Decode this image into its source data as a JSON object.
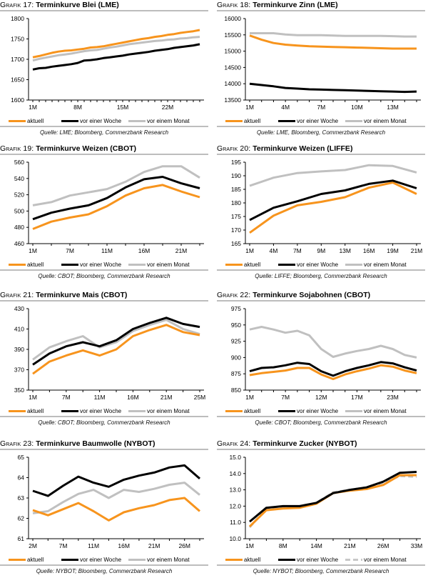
{
  "colors": {
    "aktuell": "#f7941d",
    "woche": "#000000",
    "monat": "#c0c0c0",
    "rule": "#bdbdbd"
  },
  "legend_labels": [
    "aktuell",
    "vor einer Woche",
    "vor einem Monat"
  ],
  "chart_data": [
    {
      "id": "g17",
      "type": "line",
      "prefix": "Grafik 17:",
      "title": "Terminkurve Blei (LME)",
      "source": "Quelle: LME; Bloomberg, Commerzbank Research",
      "ylim": [
        1600,
        1800
      ],
      "yticks": [
        1600,
        1650,
        1700,
        1750,
        1800
      ],
      "xticks": [
        "1M",
        "8M",
        "15M",
        "22M"
      ],
      "xtick_idx": [
        0,
        7,
        14,
        21
      ],
      "n": 27,
      "series": [
        {
          "name": "aktuell",
          "values": [
            1705,
            1708,
            1712,
            1716,
            1719,
            1721,
            1722,
            1724,
            1726,
            1729,
            1730,
            1732,
            1735,
            1738,
            1741,
            1744,
            1747,
            1750,
            1752,
            1755,
            1757,
            1760,
            1762,
            1765,
            1767,
            1769,
            1772
          ]
        },
        {
          "name": "vor einer Woche",
          "values": [
            1675,
            1678,
            1679,
            1682,
            1684,
            1686,
            1688,
            1691,
            1697,
            1698,
            1700,
            1703,
            1705,
            1707,
            1709,
            1712,
            1714,
            1716,
            1718,
            1721,
            1723,
            1725,
            1728,
            1730,
            1732,
            1734,
            1737
          ]
        },
        {
          "name": "vor einem Monat",
          "values": [
            1697,
            1701,
            1704,
            1707,
            1710,
            1712,
            1714,
            1717,
            1720,
            1722,
            1723,
            1726,
            1729,
            1731,
            1734,
            1737,
            1739,
            1741,
            1743,
            1745,
            1746,
            1748,
            1749,
            1751,
            1752,
            1754,
            1755
          ]
        }
      ]
    },
    {
      "id": "g18",
      "type": "line",
      "prefix": "Grafik 18:",
      "title": "Terminkurve Zinn (LME)",
      "source": "Quelle: LME, Bloomberg, Commerzbank Research",
      "ylim": [
        13500,
        16000
      ],
      "yticks": [
        13500,
        14000,
        14500,
        15000,
        15500,
        16000
      ],
      "xticks": [
        "1M",
        "4M",
        "7M",
        "10M",
        "13M"
      ],
      "xtick_idx": [
        0,
        3,
        6,
        9,
        12
      ],
      "n": 15,
      "series": [
        {
          "name": "aktuell",
          "values": [
            15480,
            15350,
            15250,
            15200,
            15170,
            15150,
            15140,
            15130,
            15120,
            15110,
            15100,
            15090,
            15080,
            15080,
            15080
          ]
        },
        {
          "name": "vor einer Woche",
          "values": [
            14000,
            13960,
            13920,
            13870,
            13850,
            13830,
            13820,
            13810,
            13800,
            13790,
            13780,
            13770,
            13760,
            13750,
            13760
          ]
        },
        {
          "name": "vor einem Monat",
          "values": [
            15550,
            15550,
            15550,
            15510,
            15490,
            15490,
            15490,
            15480,
            15470,
            15470,
            15470,
            15470,
            15460,
            15450,
            15450
          ]
        }
      ]
    },
    {
      "id": "g19",
      "type": "line",
      "prefix": "Grafik 19:",
      "title": "Terminkurve Weizen (CBOT)",
      "source": "Quelle: CBOT; Bloomberg, Commerzbank Research",
      "ylim": [
        460,
        560
      ],
      "yticks": [
        460,
        480,
        500,
        520,
        540,
        560
      ],
      "xticks": [
        "1M",
        "7M",
        "11M",
        "16M",
        "21M"
      ],
      "xtick_idx": [
        0,
        2,
        4,
        6,
        8
      ],
      "n": 10,
      "series": [
        {
          "name": "aktuell",
          "values": [
            478,
            487,
            492,
            496,
            506,
            519,
            528,
            532,
            524,
            517
          ]
        },
        {
          "name": "vor einer Woche",
          "values": [
            490,
            498,
            503,
            507,
            516,
            529,
            539,
            542,
            534,
            528
          ]
        },
        {
          "name": "vor einem Monat",
          "values": [
            507,
            511,
            519,
            523,
            527,
            536,
            548,
            555,
            555,
            541
          ]
        }
      ]
    },
    {
      "id": "g20",
      "type": "line",
      "prefix": "Grafik 20:",
      "title": "Terminkurve Weizen (LIFFE)",
      "source": "Quelle: LIFFE; Bloomberg, Commerzbank Research",
      "ylim": [
        165,
        195
      ],
      "yticks": [
        165,
        170,
        175,
        180,
        185,
        190,
        195
      ],
      "xticks": [
        "1M",
        "4M",
        "7M",
        "9M",
        "13M",
        "16M",
        "19M",
        "21M"
      ],
      "xtick_idx": [
        0,
        1,
        2,
        3,
        4,
        5,
        6,
        7
      ],
      "n": 8,
      "series": [
        {
          "name": "aktuell",
          "values": [
            169,
            175.3,
            179.1,
            180.4,
            182.1,
            185.6,
            187.5,
            183.3
          ]
        },
        {
          "name": "vor einer Woche",
          "values": [
            173.7,
            178.2,
            180.6,
            183.3,
            184.6,
            187.0,
            188.2,
            185.4
          ]
        },
        {
          "name": "vor einem Monat",
          "values": [
            186.3,
            189.3,
            191.0,
            191.6,
            192.1,
            193.9,
            193.6,
            191.2
          ]
        }
      ]
    },
    {
      "id": "g21",
      "type": "line",
      "prefix": "Grafik 21:",
      "title": "Terminkurve Mais (CBOT)",
      "source": "Quelle: CBOT; Bloomberg, Commerzbank Research",
      "ylim": [
        350,
        430
      ],
      "yticks": [
        350,
        370,
        390,
        410,
        430
      ],
      "xticks": [
        "1M",
        "7M",
        "11M",
        "16M",
        "21M",
        "25M"
      ],
      "xtick_idx": [
        0,
        2,
        4,
        6,
        8,
        10
      ],
      "n": 11,
      "series": [
        {
          "name": "aktuell",
          "values": [
            366,
            378,
            384,
            389,
            384,
            390,
            403,
            409,
            414,
            407,
            404
          ]
        },
        {
          "name": "vor einer Woche",
          "values": [
            375,
            386,
            393,
            397,
            393,
            399,
            410,
            416,
            421,
            415,
            412
          ]
        },
        {
          "name": "vor einem Monat",
          "values": [
            380,
            392,
            398,
            403,
            392,
            397,
            408,
            414,
            419,
            410,
            405
          ]
        }
      ]
    },
    {
      "id": "g22",
      "type": "line",
      "prefix": "Grafik 22:",
      "title": "Terminkurve Sojabohnen (CBOT)",
      "source": "Quelle: CBOT; Bloomberg, Commerzbank Research",
      "ylim": [
        850,
        975
      ],
      "yticks": [
        850,
        875,
        900,
        925,
        950,
        975
      ],
      "xticks": [
        "1M",
        "7M",
        "12M",
        "17M",
        "23M"
      ],
      "xtick_idx": [
        0,
        3,
        6,
        9,
        12
      ],
      "n": 15,
      "series": [
        {
          "name": "aktuell",
          "values": [
            873,
            876,
            878,
            880,
            884,
            884,
            874,
            867,
            874,
            879,
            883,
            888,
            886,
            880,
            876
          ]
        },
        {
          "name": "vor einer Woche",
          "values": [
            879,
            884,
            885,
            888,
            892,
            890,
            879,
            872,
            879,
            884,
            888,
            893,
            891,
            885,
            880
          ]
        },
        {
          "name": "vor einem Monat",
          "values": [
            943,
            947,
            943,
            938,
            941,
            934,
            913,
            901,
            906,
            910,
            913,
            918,
            913,
            904,
            900
          ]
        }
      ]
    },
    {
      "id": "g23",
      "type": "line",
      "prefix": "Grafik 23:",
      "title": "Terminkurve Baumwolle (NYBOT)",
      "source": "Quelle: NYBOT; Bloomberg, Commerzbank Research",
      "ylim": [
        61,
        65
      ],
      "yticks": [
        61,
        62,
        63,
        64,
        65
      ],
      "xticks": [
        "2M",
        "7M",
        "11M",
        "16M",
        "21M",
        "26M"
      ],
      "xtick_idx": [
        0,
        2,
        4,
        6,
        8,
        10
      ],
      "n": 12,
      "series": [
        {
          "name": "aktuell",
          "values": [
            62.4,
            62.15,
            62.45,
            62.75,
            62.35,
            61.9,
            62.3,
            62.5,
            62.65,
            62.9,
            63.0,
            62.35
          ]
        },
        {
          "name": "vor einer Woche",
          "values": [
            63.35,
            63.1,
            63.6,
            64.05,
            63.75,
            63.55,
            63.9,
            64.1,
            64.25,
            64.5,
            64.6,
            63.95
          ]
        },
        {
          "name": "vor einem Monat",
          "values": [
            62.25,
            62.35,
            62.8,
            63.2,
            63.4,
            63.0,
            63.4,
            63.3,
            63.45,
            63.65,
            63.75,
            63.15
          ]
        }
      ]
    },
    {
      "id": "g24",
      "type": "line",
      "prefix": "Grafik 24:",
      "title": "Terminkurve Zucker (NYBOT)",
      "source": "Quelle: NYBOT; Bloomberg, Commerzbank Research",
      "ylim": [
        10,
        15
      ],
      "yticks": [
        10.0,
        11.0,
        12.0,
        13.0,
        14.0,
        15.0
      ],
      "xticks": [
        "1M",
        "8M",
        "14M",
        "21M",
        "26M",
        "33M"
      ],
      "xtick_idx": [
        0,
        2,
        4,
        6,
        8,
        10
      ],
      "n": 11,
      "series": [
        {
          "name": "aktuell",
          "values": [
            10.75,
            11.75,
            11.85,
            11.9,
            12.15,
            12.8,
            12.95,
            13.05,
            13.3,
            13.9,
            13.9
          ]
        },
        {
          "name": "vor einer Woche",
          "values": [
            11.05,
            11.9,
            12.0,
            12.0,
            12.2,
            12.8,
            13.0,
            13.15,
            13.5,
            14.05,
            14.1
          ]
        },
        {
          "name": "vor einem Monat",
          "values": [
            10.7,
            11.85,
            11.95,
            12.0,
            12.2,
            12.85,
            13.0,
            13.15,
            13.45,
            13.85,
            13.8
          ]
        }
      ]
    }
  ]
}
